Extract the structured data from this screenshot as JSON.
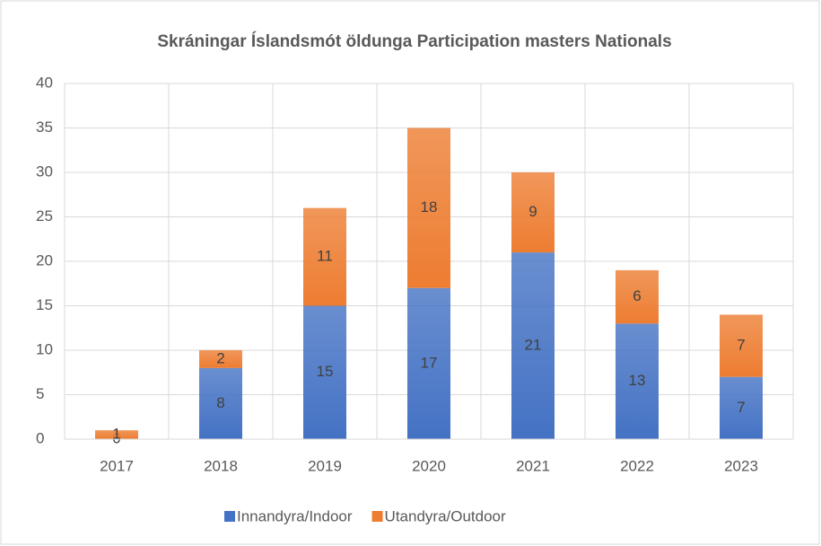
{
  "chart_data": {
    "type": "stacked_bar",
    "title": "Skráningar Íslandsmót öldunga Participation masters Nationals",
    "categories": [
      "2017",
      "2018",
      "2019",
      "2020",
      "2021",
      "2022",
      "2023"
    ],
    "series": [
      {
        "name": "Innandyra/Indoor",
        "color": "#4472c4",
        "values": [
          0,
          8,
          15,
          17,
          21,
          13,
          7
        ]
      },
      {
        "name": "Utandyra/Outdoor",
        "color": "#ed7d31",
        "values": [
          1,
          2,
          11,
          18,
          9,
          6,
          7
        ]
      }
    ],
    "ylim": [
      0,
      40
    ],
    "yticks": [
      0,
      5,
      10,
      15,
      20,
      25,
      30,
      35,
      40
    ],
    "grid": true,
    "legend": "bottom"
  }
}
